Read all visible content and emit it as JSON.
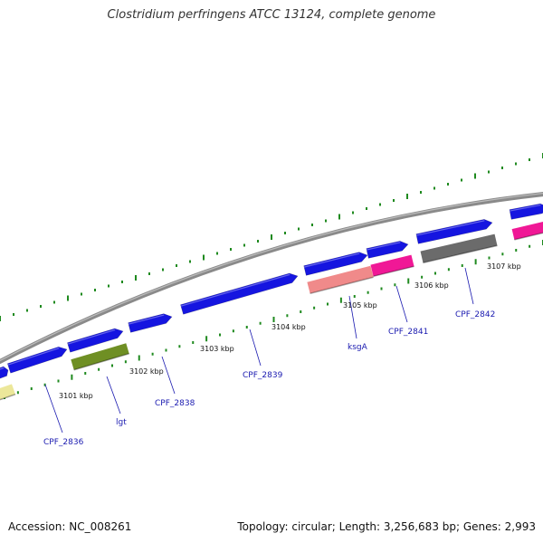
{
  "title": "Clostridium perfringens ATCC 13124, complete genome",
  "footer": {
    "accession": "Accession: NC_008261",
    "summary": "Topology: circular; Length: 3,256,683 bp; Genes: 2,993"
  },
  "colors": {
    "backbone": "#8a8a8a",
    "gc_ticks": "#1f8a1f",
    "cds_forward": "#1515e0",
    "label_text": "#1a1ab0",
    "lgt": "#6f8f24",
    "ksgA": "#f08a8a",
    "CPF_2841": "#f01896",
    "CPF_2842": "#6b6b6b",
    "partial_yellow": "#ece79a",
    "partial_magenta": "#f01896"
  },
  "ticks": [
    {
      "label": "3101 kbp"
    },
    {
      "label": "3102 kbp"
    },
    {
      "label": "3103 kbp"
    },
    {
      "label": "3104 kbp"
    },
    {
      "label": "3105 kbp"
    },
    {
      "label": "3106 kbp"
    },
    {
      "label": "3107 kbp"
    }
  ],
  "genes": [
    {
      "label": "CPF_2836"
    },
    {
      "label": "lgt"
    },
    {
      "label": "CPF_2838"
    },
    {
      "label": "CPF_2839"
    },
    {
      "label": "ksgA"
    },
    {
      "label": "CPF_2841"
    },
    {
      "label": "CPF_2842"
    }
  ]
}
